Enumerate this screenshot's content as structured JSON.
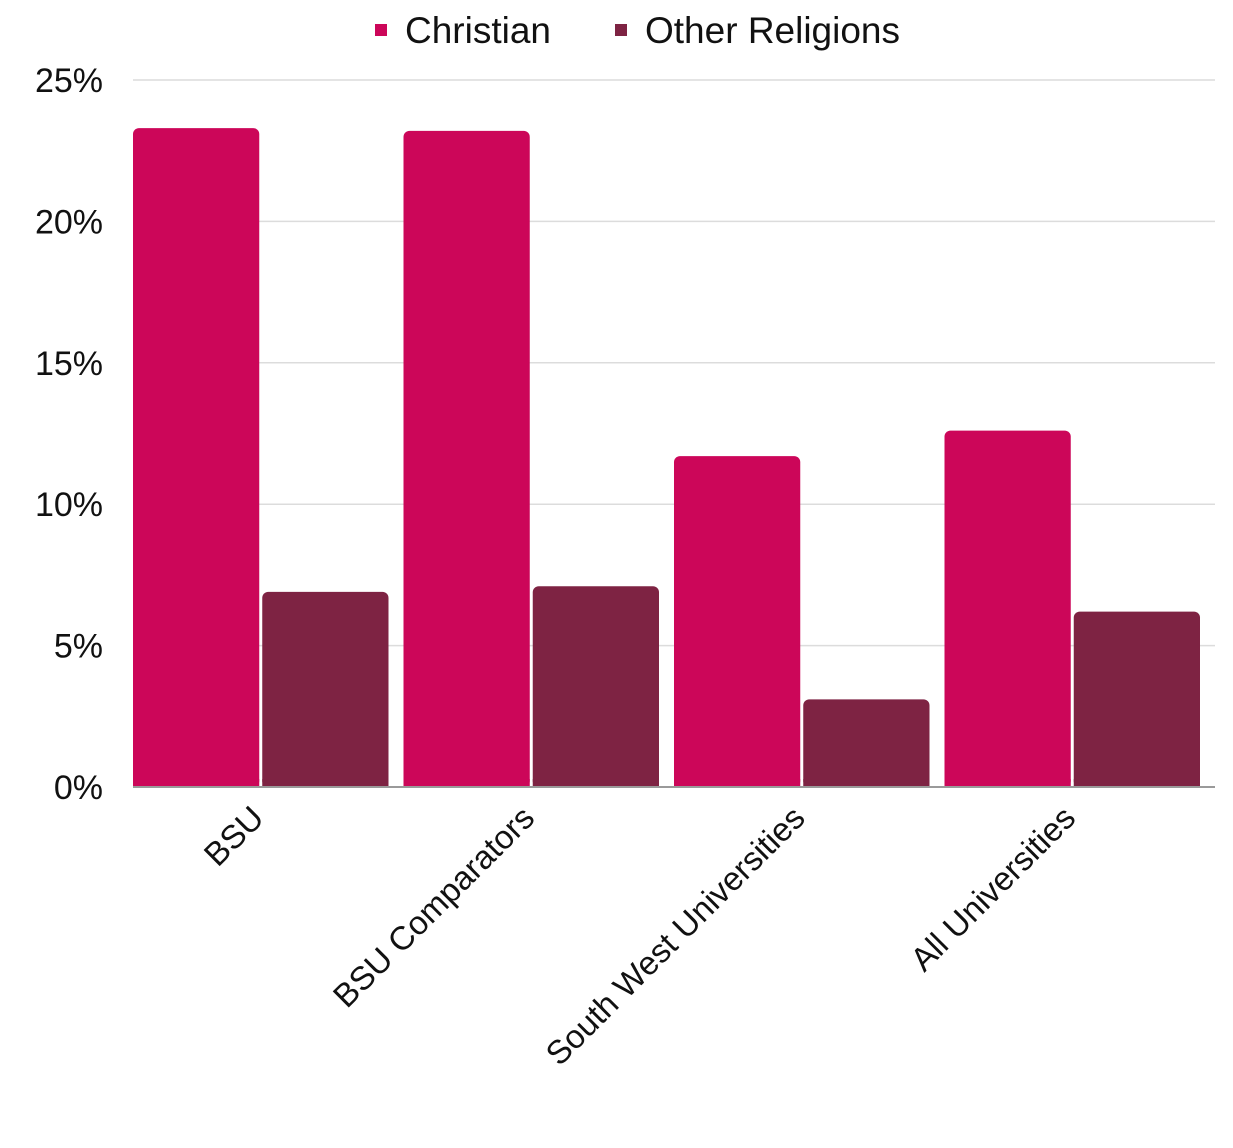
{
  "chart_data": {
    "type": "bar",
    "categories": [
      "BSU",
      "BSU Comparators",
      "South West Universities",
      "All Universities"
    ],
    "series": [
      {
        "name": "Christian",
        "color": "#cc0659",
        "values": [
          23.3,
          23.2,
          11.7,
          12.6
        ]
      },
      {
        "name": "Other Religions",
        "color": "#7e2343",
        "values": [
          6.9,
          7.1,
          3.1,
          6.2
        ]
      }
    ],
    "title": "",
    "xlabel": "",
    "ylabel": "",
    "ylim": [
      0,
      25
    ],
    "yticks": [
      "0%",
      "5%",
      "10%",
      "15%",
      "20%",
      "25%"
    ],
    "grid": true,
    "legend": "top"
  }
}
